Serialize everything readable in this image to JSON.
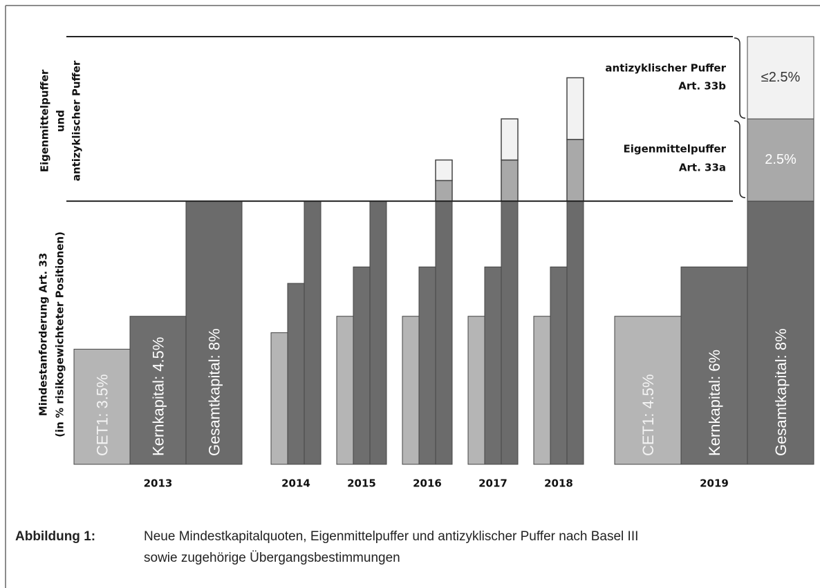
{
  "chart_data": {
    "type": "bar",
    "categories": [
      "2013",
      "2014",
      "2015",
      "2016",
      "2017",
      "2018",
      "2019"
    ],
    "series": [
      {
        "color": "#b5b5b5",
        "values": [
          3.5,
          4,
          4.5,
          4.5,
          4.5,
          4.5,
          4.5
        ],
        "value_labels": [
          "CET1: 3.5%",
          null,
          null,
          null,
          null,
          null,
          "CET1: 4.5%"
        ]
      },
      {
        "color": "#6e6e6e",
        "values": [
          4.5,
          5.5,
          6,
          6,
          6,
          6,
          6
        ],
        "value_labels": [
          "Kernkapital: 4.5%",
          null,
          null,
          null,
          null,
          null,
          "Kernkapital: 6%"
        ]
      },
      {
        "color": "#6b6b6b",
        "values": [
          8,
          8,
          8,
          8,
          8,
          8,
          8
        ],
        "value_labels": [
          "Gesamtkapital: 8%",
          null,
          null,
          null,
          null,
          null,
          "Gesamtkapital: 8%"
        ]
      },
      {
        "color": "#a9a9a9",
        "values": [
          null,
          null,
          null,
          0.625,
          1.25,
          1.875,
          2.5
        ],
        "value_labels": [
          null,
          null,
          null,
          null,
          null,
          null,
          "2.5%"
        ]
      },
      {
        "color": "#f2f2f2",
        "values": [
          null,
          null,
          null,
          0.625,
          1.25,
          1.875,
          2.5
        ],
        "value_labels": [
          null,
          null,
          null,
          null,
          null,
          null,
          "≤2.5%"
        ]
      }
    ],
    "ylim": [
      0,
      13
    ],
    "annotations": {
      "left_top": [
        "Eigenmittelpuffer",
        "und",
        "antizyklischer Puffer"
      ],
      "left_bottom": [
        "Mindestanforderung Art. 33",
        "(in % risikogewichteter Positionen)"
      ],
      "right_top": [
        "antizyklischer Puffer",
        "Art. 33b"
      ],
      "right_mid": [
        "Eigenmittelpuffer",
        "Art. 33a"
      ]
    },
    "caption": {
      "label": "Abbildung 1:",
      "lines": [
        "Neue Mindestkapitalquoten, Eigenmittelpuffer und antizyklischer Puffer nach Basel III",
        "sowie zugehörige Übergangsbestimmungen"
      ]
    }
  }
}
